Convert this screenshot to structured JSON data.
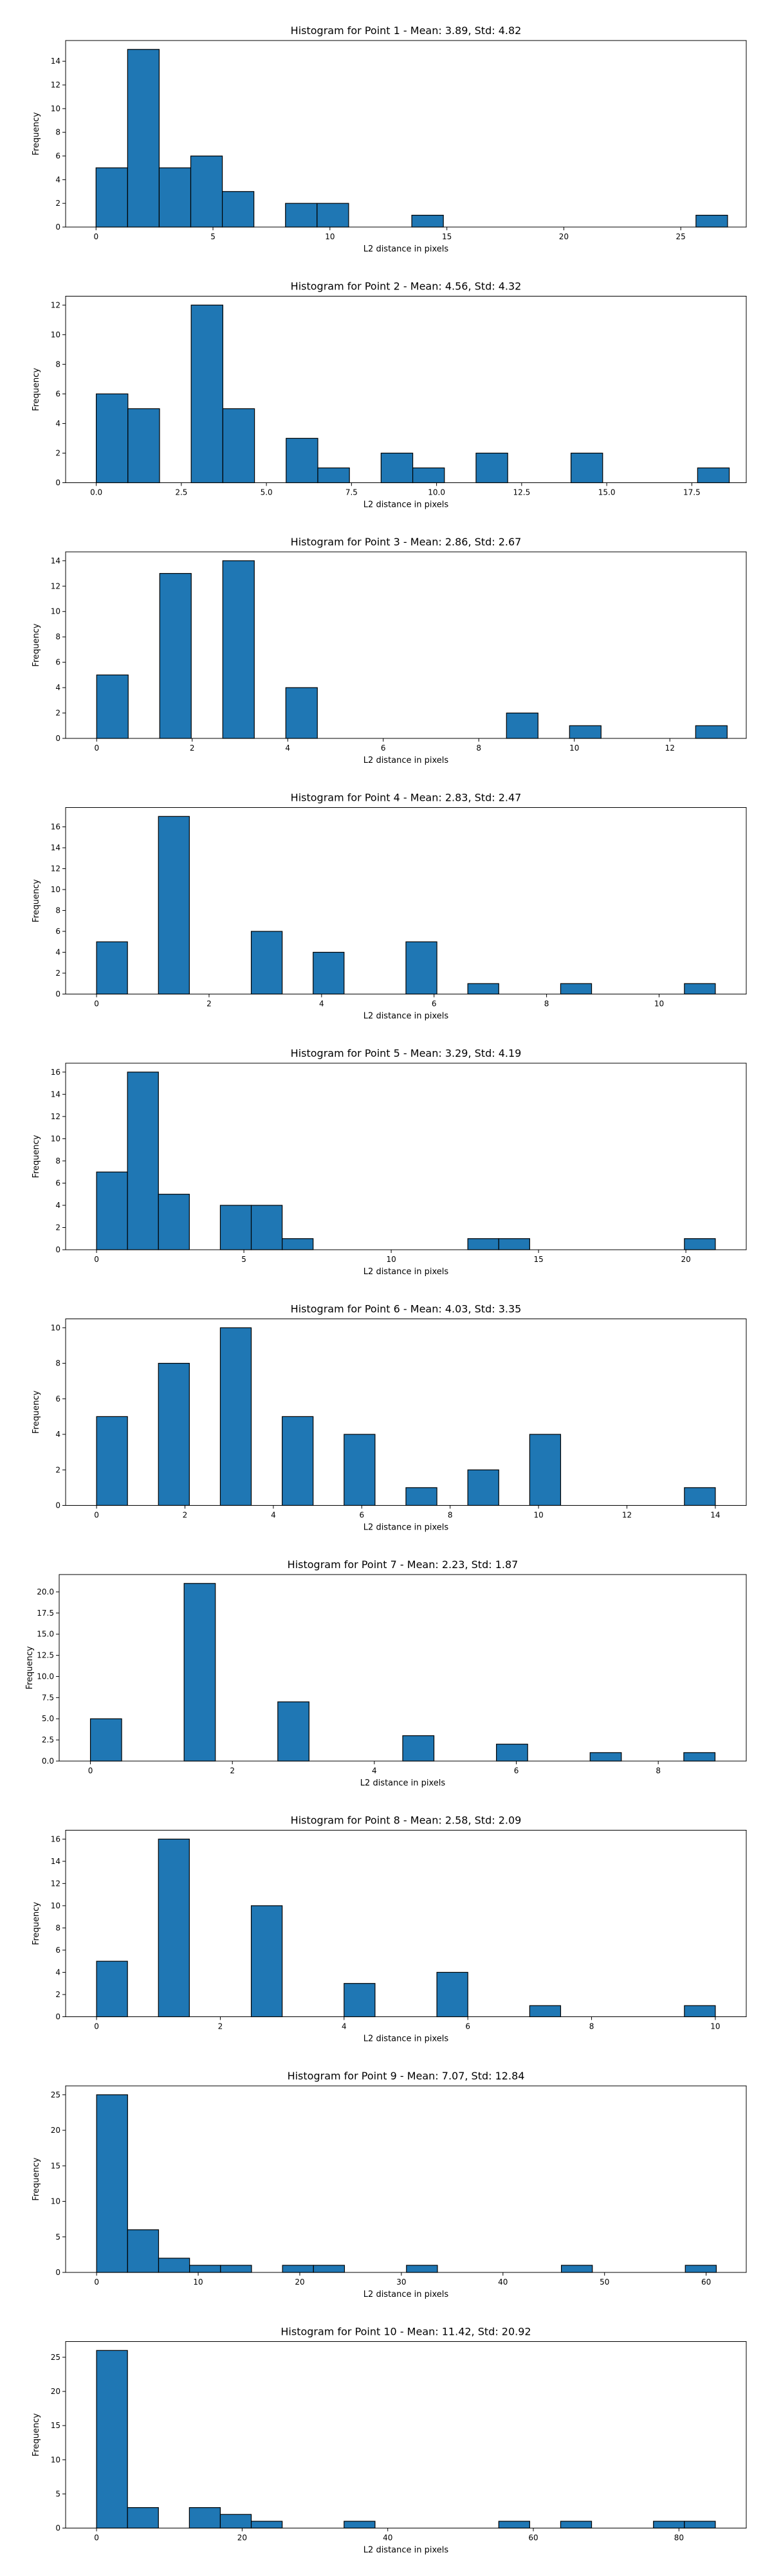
{
  "chart_data": [
    {
      "type": "bar",
      "title": "Histogram for Point 1 - Mean: 3.89, Std: 4.82",
      "xlabel": "L2 distance in pixels",
      "ylabel": "Frequency",
      "xlim": [
        -1.3,
        27.8
      ],
      "ylim": [
        0,
        15.75
      ],
      "xticks": [
        0,
        5,
        10,
        15,
        20,
        25
      ],
      "xtick_labels": [
        "0",
        "5",
        "10",
        "15",
        "20",
        "25"
      ],
      "yticks": [
        0,
        2,
        4,
        6,
        8,
        10,
        12,
        14
      ],
      "ytick_labels": [
        "0",
        "2",
        "4",
        "6",
        "8",
        "10",
        "12",
        "14"
      ],
      "bins": [
        [
          0,
          1.35,
          5
        ],
        [
          1.35,
          2.7,
          15
        ],
        [
          2.7,
          4.05,
          5
        ],
        [
          4.05,
          5.4,
          6
        ],
        [
          5.4,
          6.75,
          3
        ],
        [
          8.1,
          9.45,
          2
        ],
        [
          9.45,
          10.8,
          2
        ],
        [
          13.5,
          14.85,
          1
        ],
        [
          25.65,
          27,
          1
        ]
      ],
      "grid": false,
      "color": "#1f77b4",
      "edgecolor": "#000000"
    },
    {
      "type": "bar",
      "title": "Histogram for Point 2 - Mean: 4.56, Std: 4.32",
      "xlabel": "L2 distance in pixels",
      "ylabel": "Frequency",
      "xlim": [
        -0.9,
        19.1
      ],
      "ylim": [
        0,
        12.6
      ],
      "xticks": [
        0,
        2.5,
        5,
        7.5,
        10,
        12.5,
        15,
        17.5
      ],
      "xtick_labels": [
        "0.0",
        "2.5",
        "5.0",
        "7.5",
        "10.0",
        "12.5",
        "15.0",
        "17.5"
      ],
      "yticks": [
        0,
        2,
        4,
        6,
        8,
        10,
        12
      ],
      "ytick_labels": [
        "0",
        "2",
        "4",
        "6",
        "8",
        "10",
        "12"
      ],
      "bins": [
        [
          0,
          0.93,
          6
        ],
        [
          0.93,
          1.86,
          5
        ],
        [
          2.79,
          3.72,
          12
        ],
        [
          3.72,
          4.65,
          5
        ],
        [
          5.58,
          6.51,
          3
        ],
        [
          6.51,
          7.44,
          1
        ],
        [
          8.37,
          9.3,
          2
        ],
        [
          9.3,
          10.23,
          1
        ],
        [
          11.16,
          12.09,
          2
        ],
        [
          13.95,
          14.88,
          2
        ],
        [
          17.67,
          18.6,
          1
        ]
      ],
      "grid": false,
      "color": "#1f77b4",
      "edgecolor": "#000000"
    },
    {
      "type": "bar",
      "title": "Histogram for Point 3 - Mean: 2.86, Std: 2.67",
      "xlabel": "L2 distance in pixels",
      "ylabel": "Frequency",
      "xlim": [
        -0.65,
        13.6
      ],
      "ylim": [
        0,
        14.7
      ],
      "xticks": [
        0,
        2,
        4,
        6,
        8,
        10,
        12
      ],
      "xtick_labels": [
        "0",
        "2",
        "4",
        "6",
        "8",
        "10",
        "12"
      ],
      "yticks": [
        0,
        2,
        4,
        6,
        8,
        10,
        12,
        14
      ],
      "ytick_labels": [
        "0",
        "2",
        "4",
        "6",
        "8",
        "10",
        "12",
        "14"
      ],
      "bins": [
        [
          0,
          0.66,
          5
        ],
        [
          1.32,
          1.98,
          13
        ],
        [
          2.64,
          3.3,
          14
        ],
        [
          3.96,
          4.62,
          4
        ],
        [
          8.58,
          9.24,
          2
        ],
        [
          9.9,
          10.56,
          1
        ],
        [
          12.54,
          13.2,
          1
        ]
      ],
      "grid": false,
      "color": "#1f77b4",
      "edgecolor": "#000000"
    },
    {
      "type": "bar",
      "title": "Histogram for Point 4 - Mean: 2.83, Std: 2.47",
      "xlabel": "L2 distance in pixels",
      "ylabel": "Frequency",
      "xlim": [
        -0.55,
        11.55
      ],
      "ylim": [
        0,
        17.85
      ],
      "xticks": [
        0,
        2,
        4,
        6,
        8,
        10
      ],
      "xtick_labels": [
        "0",
        "2",
        "4",
        "6",
        "8",
        "10"
      ],
      "yticks": [
        0,
        2,
        4,
        6,
        8,
        10,
        12,
        14,
        16
      ],
      "ytick_labels": [
        "0",
        "2",
        "4",
        "6",
        "8",
        "10",
        "12",
        "14",
        "16"
      ],
      "bins": [
        [
          0,
          0.55,
          5
        ],
        [
          1.1,
          1.65,
          17
        ],
        [
          2.75,
          3.3,
          6
        ],
        [
          3.85,
          4.4,
          4
        ],
        [
          5.5,
          6.05,
          5
        ],
        [
          6.6,
          7.15,
          1
        ],
        [
          8.25,
          8.8,
          1
        ],
        [
          10.45,
          11,
          1
        ]
      ],
      "grid": false,
      "color": "#1f77b4",
      "edgecolor": "#000000"
    },
    {
      "type": "bar",
      "title": "Histogram for Point 5 - Mean: 3.29, Std: 4.19",
      "xlabel": "L2 distance in pixels",
      "ylabel": "Frequency",
      "xlim": [
        -1.05,
        22.05
      ],
      "ylim": [
        0,
        16.8
      ],
      "xticks": [
        0,
        5,
        10,
        15,
        20
      ],
      "xtick_labels": [
        "0",
        "5",
        "10",
        "15",
        "20"
      ],
      "yticks": [
        0,
        2,
        4,
        6,
        8,
        10,
        12,
        14,
        16
      ],
      "ytick_labels": [
        "0",
        "2",
        "4",
        "6",
        "8",
        "10",
        "12",
        "14",
        "16"
      ],
      "bins": [
        [
          0,
          1.05,
          7
        ],
        [
          1.05,
          2.1,
          16
        ],
        [
          2.1,
          3.15,
          5
        ],
        [
          4.2,
          5.25,
          4
        ],
        [
          5.25,
          6.3,
          4
        ],
        [
          6.3,
          7.35,
          1
        ],
        [
          12.6,
          13.65,
          1
        ],
        [
          13.65,
          14.7,
          1
        ],
        [
          19.95,
          21,
          1
        ]
      ],
      "grid": false,
      "color": "#1f77b4",
      "edgecolor": "#000000"
    },
    {
      "type": "bar",
      "title": "Histogram for Point 6 - Mean: 4.03, Std: 3.35",
      "xlabel": "L2 distance in pixels",
      "ylabel": "Frequency",
      "xlim": [
        -0.7,
        14.7
      ],
      "ylim": [
        0,
        10.5
      ],
      "xticks": [
        0,
        2,
        4,
        6,
        8,
        10,
        12,
        14
      ],
      "xtick_labels": [
        "0",
        "2",
        "4",
        "6",
        "8",
        "10",
        "12",
        "14"
      ],
      "yticks": [
        0,
        2,
        4,
        6,
        8,
        10
      ],
      "ytick_labels": [
        "0",
        "2",
        "4",
        "6",
        "8",
        "10"
      ],
      "bins": [
        [
          0,
          0.7,
          5
        ],
        [
          1.4,
          2.1,
          8
        ],
        [
          2.8,
          3.5,
          10
        ],
        [
          4.2,
          4.9,
          5
        ],
        [
          5.6,
          6.3,
          4
        ],
        [
          7,
          7.7,
          1
        ],
        [
          8.4,
          9.1,
          2
        ],
        [
          9.8,
          10.5,
          4
        ],
        [
          13.3,
          14,
          1
        ]
      ],
      "grid": false,
      "color": "#1f77b4",
      "edgecolor": "#000000"
    },
    {
      "type": "bar",
      "title": "Histogram for Point 7 - Mean: 2.23, Std: 1.87",
      "xlabel": "L2 distance in pixels",
      "ylabel": "Frequency",
      "xlim": [
        -0.44,
        9.24
      ],
      "ylim": [
        0,
        22.05
      ],
      "xticks": [
        0,
        2,
        4,
        6,
        8
      ],
      "xtick_labels": [
        "0",
        "2",
        "4",
        "6",
        "8"
      ],
      "yticks": [
        0,
        2.5,
        5,
        7.5,
        10,
        12.5,
        15,
        17.5,
        20
      ],
      "ytick_labels": [
        "0.0",
        "2.5",
        "5.0",
        "7.5",
        "10.0",
        "12.5",
        "15.0",
        "17.5",
        "20.0"
      ],
      "bins": [
        [
          0,
          0.44,
          5
        ],
        [
          1.32,
          1.76,
          21
        ],
        [
          2.64,
          3.08,
          7
        ],
        [
          4.4,
          4.84,
          3
        ],
        [
          5.72,
          6.16,
          2
        ],
        [
          7.04,
          7.48,
          1
        ],
        [
          8.36,
          8.8,
          1
        ]
      ],
      "grid": false,
      "color": "#1f77b4",
      "edgecolor": "#000000"
    },
    {
      "type": "bar",
      "title": "Histogram for Point 8 - Mean: 2.58, Std: 2.09",
      "xlabel": "L2 distance in pixels",
      "ylabel": "Frequency",
      "xlim": [
        -0.5,
        10.5
      ],
      "ylim": [
        0,
        16.8
      ],
      "xticks": [
        0,
        2,
        4,
        6,
        8,
        10
      ],
      "xtick_labels": [
        "0",
        "2",
        "4",
        "6",
        "8",
        "10"
      ],
      "yticks": [
        0,
        2,
        4,
        6,
        8,
        10,
        12,
        14,
        16
      ],
      "ytick_labels": [
        "0",
        "2",
        "4",
        "6",
        "8",
        "10",
        "12",
        "14",
        "16"
      ],
      "bins": [
        [
          0,
          0.5,
          5
        ],
        [
          1,
          1.5,
          16
        ],
        [
          2.5,
          3,
          10
        ],
        [
          4,
          4.5,
          3
        ],
        [
          5.5,
          6,
          4
        ],
        [
          7,
          7.5,
          1
        ],
        [
          9.5,
          10,
          1
        ]
      ],
      "grid": false,
      "color": "#1f77b4",
      "edgecolor": "#000000"
    },
    {
      "type": "bar",
      "title": "Histogram for Point 9 - Mean: 7.07, Std: 12.84",
      "xlabel": "L2 distance in pixels",
      "ylabel": "Frequency",
      "xlim": [
        -3.05,
        63.95
      ],
      "ylim": [
        0,
        26.25
      ],
      "xticks": [
        0,
        10,
        20,
        30,
        40,
        50,
        60
      ],
      "xtick_labels": [
        "0",
        "10",
        "20",
        "30",
        "40",
        "50",
        "60"
      ],
      "yticks": [
        0,
        5,
        10,
        15,
        20,
        25
      ],
      "ytick_labels": [
        "0",
        "5",
        "10",
        "15",
        "20",
        "25"
      ],
      "bins": [
        [
          0,
          3.05,
          25
        ],
        [
          3.05,
          6.1,
          6
        ],
        [
          6.1,
          9.15,
          2
        ],
        [
          9.15,
          12.2,
          1
        ],
        [
          12.2,
          15.25,
          1
        ],
        [
          18.3,
          21.35,
          1
        ],
        [
          21.35,
          24.4,
          1
        ],
        [
          30.5,
          33.55,
          1
        ],
        [
          45.75,
          48.8,
          1
        ],
        [
          57.95,
          61,
          1
        ]
      ],
      "grid": false,
      "color": "#1f77b4",
      "edgecolor": "#000000"
    },
    {
      "type": "bar",
      "title": "Histogram for Point 10 - Mean: 11.42, Std: 20.92",
      "xlabel": "L2 distance in pixels",
      "ylabel": "Frequency",
      "xlim": [
        -4.25,
        89.25
      ],
      "ylim": [
        0,
        27.3
      ],
      "xticks": [
        0,
        20,
        40,
        60,
        80
      ],
      "xtick_labels": [
        "0",
        "20",
        "40",
        "60",
        "80"
      ],
      "yticks": [
        0,
        5,
        10,
        15,
        20,
        25
      ],
      "ytick_labels": [
        "0",
        "5",
        "10",
        "15",
        "20",
        "25"
      ],
      "bins": [
        [
          0,
          4.25,
          26
        ],
        [
          4.25,
          8.5,
          3
        ],
        [
          12.75,
          17,
          3
        ],
        [
          17,
          21.25,
          2
        ],
        [
          21.25,
          25.5,
          1
        ],
        [
          34,
          38.25,
          1
        ],
        [
          55.25,
          59.5,
          1
        ],
        [
          63.75,
          68,
          1
        ],
        [
          76.5,
          80.75,
          1
        ],
        [
          80.75,
          85,
          1
        ]
      ],
      "grid": false,
      "color": "#1f77b4",
      "edgecolor": "#000000"
    }
  ]
}
